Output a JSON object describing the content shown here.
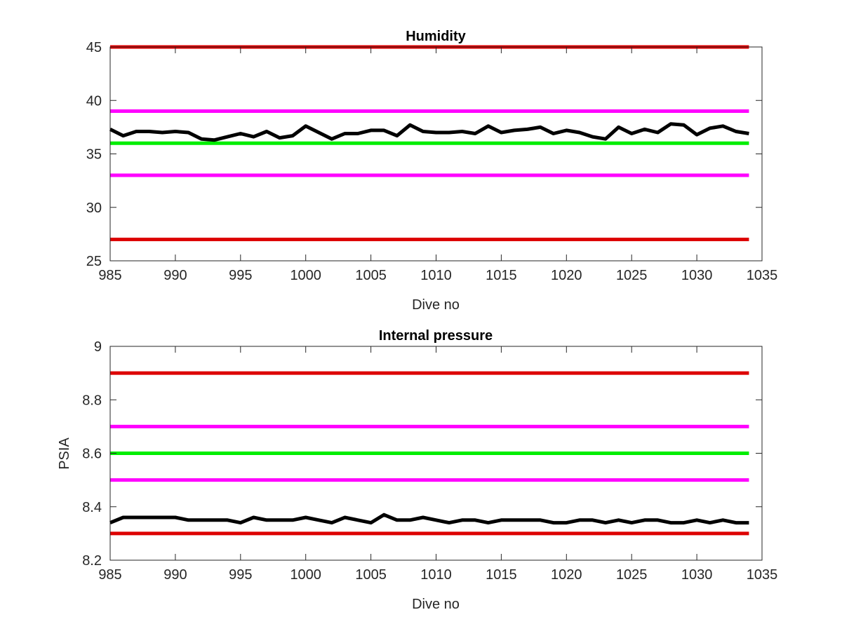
{
  "chart_data": [
    {
      "type": "line",
      "title": "Humidity",
      "xlabel": "Dive no",
      "ylabel": "",
      "xlim": [
        985,
        1035
      ],
      "ylim": [
        25,
        45
      ],
      "xticks": [
        985,
        990,
        995,
        1000,
        1005,
        1010,
        1015,
        1020,
        1025,
        1030,
        1035
      ],
      "yticks": [
        25,
        30,
        35,
        40,
        45
      ],
      "grid": false,
      "legend": "none",
      "thresholds": [
        {
          "value": 45,
          "color": "#dd0000"
        },
        {
          "value": 39,
          "color": "#ff00ff"
        },
        {
          "value": 36,
          "color": "#00ee00"
        },
        {
          "value": 33,
          "color": "#ff00ff"
        },
        {
          "value": 27,
          "color": "#dd0000"
        }
      ],
      "threshold_x": [
        985,
        1034
      ],
      "series": [
        {
          "color": "#000000",
          "x": [
            985,
            986,
            987,
            988,
            989,
            990,
            991,
            992,
            993,
            994,
            995,
            996,
            997,
            998,
            999,
            1000,
            1001,
            1002,
            1003,
            1004,
            1005,
            1006,
            1007,
            1008,
            1009,
            1010,
            1011,
            1012,
            1013,
            1014,
            1015,
            1016,
            1017,
            1018,
            1019,
            1020,
            1021,
            1022,
            1023,
            1024,
            1025,
            1026,
            1027,
            1028,
            1029,
            1030,
            1031,
            1032,
            1033,
            1034
          ],
          "values": [
            37.3,
            36.7,
            37.1,
            37.1,
            37.0,
            37.1,
            37.0,
            36.4,
            36.3,
            36.6,
            36.9,
            36.6,
            37.1,
            36.5,
            36.7,
            37.6,
            37.0,
            36.4,
            36.9,
            36.9,
            37.2,
            37.2,
            36.7,
            37.7,
            37.1,
            37.0,
            37.0,
            37.1,
            36.9,
            37.6,
            37.0,
            37.2,
            37.3,
            37.5,
            36.9,
            37.2,
            37.0,
            36.6,
            36.4,
            37.5,
            36.9,
            37.3,
            37.0,
            37.8,
            37.7,
            36.8,
            37.4,
            37.6,
            37.1,
            36.9
          ]
        }
      ]
    },
    {
      "type": "line",
      "title": "Internal pressure",
      "xlabel": "Dive no",
      "ylabel": "PSIA",
      "xlim": [
        985,
        1035
      ],
      "ylim": [
        8.2,
        9.0
      ],
      "xticks": [
        985,
        990,
        995,
        1000,
        1005,
        1010,
        1015,
        1020,
        1025,
        1030,
        1035
      ],
      "yticks": [
        8.2,
        8.4,
        8.6,
        8.8,
        9.0
      ],
      "ytick_labels": [
        "8.2",
        "8.4",
        "8.6",
        "8.8",
        "9"
      ],
      "grid": false,
      "legend": "none",
      "thresholds": [
        {
          "value": 8.9,
          "color": "#dd0000"
        },
        {
          "value": 8.7,
          "color": "#ff00ff"
        },
        {
          "value": 8.6,
          "color": "#00ee00"
        },
        {
          "value": 8.5,
          "color": "#ff00ff"
        },
        {
          "value": 8.3,
          "color": "#dd0000"
        }
      ],
      "threshold_x": [
        985,
        1034
      ],
      "series": [
        {
          "color": "#000000",
          "x": [
            985,
            986,
            987,
            988,
            989,
            990,
            991,
            992,
            993,
            994,
            995,
            996,
            997,
            998,
            999,
            1000,
            1001,
            1002,
            1003,
            1004,
            1005,
            1006,
            1007,
            1008,
            1009,
            1010,
            1011,
            1012,
            1013,
            1014,
            1015,
            1016,
            1017,
            1018,
            1019,
            1020,
            1021,
            1022,
            1023,
            1024,
            1025,
            1026,
            1027,
            1028,
            1029,
            1030,
            1031,
            1032,
            1033,
            1034
          ],
          "values": [
            8.34,
            8.36,
            8.36,
            8.36,
            8.36,
            8.36,
            8.35,
            8.35,
            8.35,
            8.35,
            8.34,
            8.36,
            8.35,
            8.35,
            8.35,
            8.36,
            8.35,
            8.34,
            8.36,
            8.35,
            8.34,
            8.37,
            8.35,
            8.35,
            8.36,
            8.35,
            8.34,
            8.35,
            8.35,
            8.34,
            8.35,
            8.35,
            8.35,
            8.35,
            8.34,
            8.34,
            8.35,
            8.35,
            8.34,
            8.35,
            8.34,
            8.35,
            8.35,
            8.34,
            8.34,
            8.35,
            8.34,
            8.35,
            8.34,
            8.34
          ]
        }
      ]
    }
  ]
}
